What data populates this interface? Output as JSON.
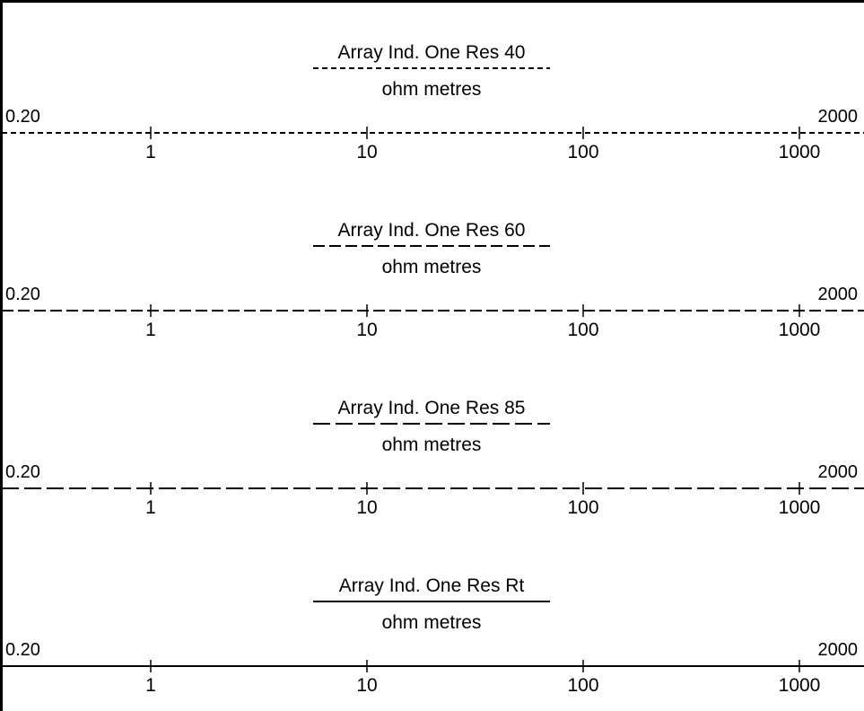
{
  "header": {
    "tracks": [
      {
        "title": "Array Ind. One Res 40",
        "unit": "ohm metres",
        "scale_min": "0.20",
        "scale_max": "2000",
        "line_style": "short-dash",
        "ticks": [
          {
            "label": "1",
            "value": 1
          },
          {
            "label": "10",
            "value": 10
          },
          {
            "label": "100",
            "value": 100
          },
          {
            "label": "1000",
            "value": 1000
          }
        ]
      },
      {
        "title": "Array Ind. One Res 60",
        "unit": "ohm metres",
        "scale_min": "0.20",
        "scale_max": "2000",
        "line_style": "medium-dash",
        "ticks": [
          {
            "label": "1",
            "value": 1
          },
          {
            "label": "10",
            "value": 10
          },
          {
            "label": "100",
            "value": 100
          },
          {
            "label": "1000",
            "value": 1000
          }
        ]
      },
      {
        "title": "Array Ind. One Res 85",
        "unit": "ohm metres",
        "scale_min": "0.20",
        "scale_max": "2000",
        "line_style": "long-dash",
        "ticks": [
          {
            "label": "1",
            "value": 1
          },
          {
            "label": "10",
            "value": 10
          },
          {
            "label": "100",
            "value": 100
          },
          {
            "label": "1000",
            "value": 1000
          }
        ]
      },
      {
        "title": "Array Ind. One Res Rt",
        "unit": "ohm metres",
        "scale_min": "0.20",
        "scale_max": "2000",
        "line_style": "solid",
        "ticks": [
          {
            "label": "1",
            "value": 1
          },
          {
            "label": "10",
            "value": 10
          },
          {
            "label": "100",
            "value": 100
          },
          {
            "label": "1000",
            "value": 1000
          }
        ]
      }
    ]
  },
  "colors": {
    "line": "#000000",
    "background": "#ffffff",
    "text": "#000000"
  }
}
